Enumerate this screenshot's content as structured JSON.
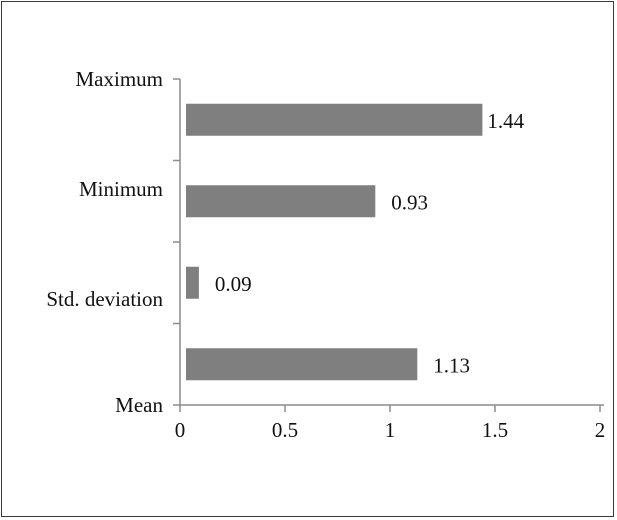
{
  "chart_data": {
    "type": "bar",
    "orientation": "horizontal",
    "categories": [
      "Mean",
      "Std. deviation",
      "Minimum",
      "Maximum"
    ],
    "values": [
      1.13,
      0.09,
      0.93,
      1.44
    ],
    "value_labels": [
      "1.13",
      "0.09",
      "0.93",
      "1.44"
    ],
    "xlim": [
      0,
      2
    ],
    "xticks": [
      0,
      0.5,
      1,
      1.5,
      2
    ],
    "xtick_labels": [
      "0",
      "0.5",
      "1",
      "1.5",
      "2"
    ],
    "title": "",
    "xlabel": "",
    "ylabel": "",
    "grid": false,
    "legend": "none",
    "bar_color": "#7f7f7f",
    "axis_color": "#8c8c8c"
  }
}
